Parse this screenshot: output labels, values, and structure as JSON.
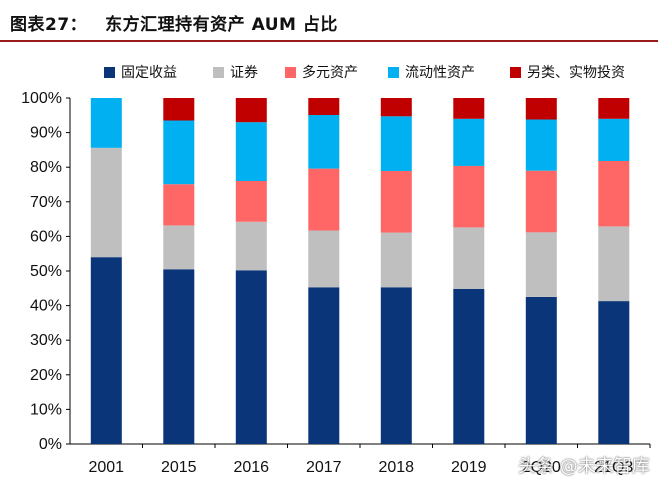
{
  "header": {
    "figure_number": "图表27：",
    "figure_title": "东方汇理持有资产 AUM 占比"
  },
  "watermark": "头条 @未来智库",
  "colors": {
    "fixed_income": "#0b3579",
    "securities": "#bfbfbf",
    "multi_asset": "#ff6666",
    "liquid_assets": "#00b0f0",
    "other_real_assets": "#c00000",
    "rule": "#9a1b1b"
  },
  "chart_data": {
    "type": "bar",
    "stacked": true,
    "title": "东方汇理持有资产 AUM 占比",
    "categories": [
      "2001",
      "2015",
      "2016",
      "2017",
      "2018",
      "2019",
      "2Q20",
      "21Q3"
    ],
    "ylim": [
      0,
      100
    ],
    "yticks": [
      "0%",
      "10%",
      "20%",
      "30%",
      "40%",
      "50%",
      "60%",
      "70%",
      "80%",
      "90%",
      "100%"
    ],
    "legend_position": "top",
    "grid": false,
    "series": [
      {
        "name": "固定收益",
        "color": "#0b3579",
        "values": [
          54,
          50.5,
          50.2,
          45.3,
          45.3,
          44.8,
          42.5,
          41.3
        ]
      },
      {
        "name": "证券",
        "color": "#bfbfbf",
        "values": [
          31.6,
          12.7,
          14,
          16.4,
          15.8,
          17.8,
          18.7,
          21.6
        ]
      },
      {
        "name": "多元资产",
        "color": "#ff6666",
        "values": [
          0,
          11.9,
          11.8,
          17.9,
          17.8,
          17.8,
          17.8,
          18.9
        ]
      },
      {
        "name": "流动性资产",
        "color": "#00b0f0",
        "values": [
          14.4,
          18.4,
          17,
          15.5,
          15.8,
          13.6,
          14.8,
          12.2
        ]
      },
      {
        "name": "另类、实物投资",
        "color": "#c00000",
        "values": [
          0,
          6.5,
          7,
          4.9,
          5.3,
          6,
          6.2,
          6
        ]
      }
    ]
  }
}
